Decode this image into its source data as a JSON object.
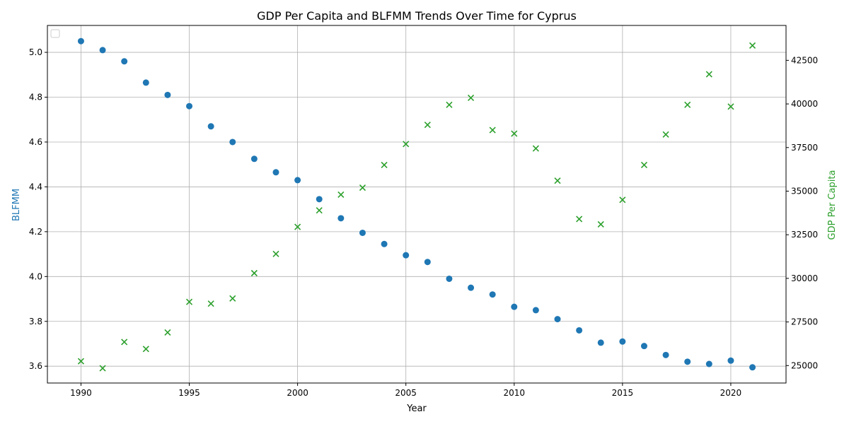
{
  "chart_data": {
    "type": "scatter",
    "title": "GDP Per Capita and BLFMM Trends Over Time for Cyprus",
    "xlabel": "Year",
    "ylabel_left": "BLFMM",
    "ylabel_right": "GDP Per Capita",
    "xlim": [
      1988.45,
      2022.55
    ],
    "ylim_left": [
      3.525,
      5.12
    ],
    "ylim_right": [
      24000,
      44500
    ],
    "xticks": [
      1990,
      1995,
      2000,
      2005,
      2010,
      2015,
      2020
    ],
    "yticks_left": [
      3.6,
      3.8,
      4.0,
      4.2,
      4.4,
      4.6,
      4.8,
      5.0
    ],
    "yticks_right": [
      25000,
      27500,
      30000,
      32500,
      35000,
      37500,
      40000,
      42500
    ],
    "grid": true,
    "legend": "top-left",
    "colors": {
      "left": "#1f77b4",
      "right": "#2ca02c"
    },
    "x": [
      1990,
      1991,
      1992,
      1993,
      1994,
      1995,
      1996,
      1997,
      1998,
      1999,
      2000,
      2001,
      2002,
      2003,
      2004,
      2005,
      2006,
      2007,
      2008,
      2009,
      2010,
      2011,
      2012,
      2013,
      2014,
      2015,
      2016,
      2017,
      2018,
      2019,
      2020,
      2021
    ],
    "series": [
      {
        "axis": "left",
        "marker": "circle",
        "values": [
          5.05,
          5.01,
          4.96,
          4.865,
          4.81,
          4.76,
          4.67,
          4.6,
          4.525,
          4.465,
          4.43,
          4.345,
          4.26,
          4.195,
          4.145,
          4.095,
          4.065,
          3.99,
          3.95,
          3.92,
          3.865,
          3.85,
          3.81,
          3.76,
          3.705,
          3.71,
          3.69,
          3.65,
          3.62,
          3.61,
          3.625,
          3.595
        ]
      },
      {
        "axis": "right",
        "marker": "x",
        "values": [
          25250,
          24850,
          26350,
          25950,
          26900,
          28650,
          28550,
          28850,
          30300,
          31400,
          32950,
          33900,
          34800,
          35200,
          36500,
          37700,
          38800,
          39950,
          40350,
          38500,
          38300,
          37450,
          35600,
          33400,
          33100,
          34500,
          36500,
          38250,
          39950,
          41700,
          39850,
          43350
        ]
      }
    ]
  }
}
